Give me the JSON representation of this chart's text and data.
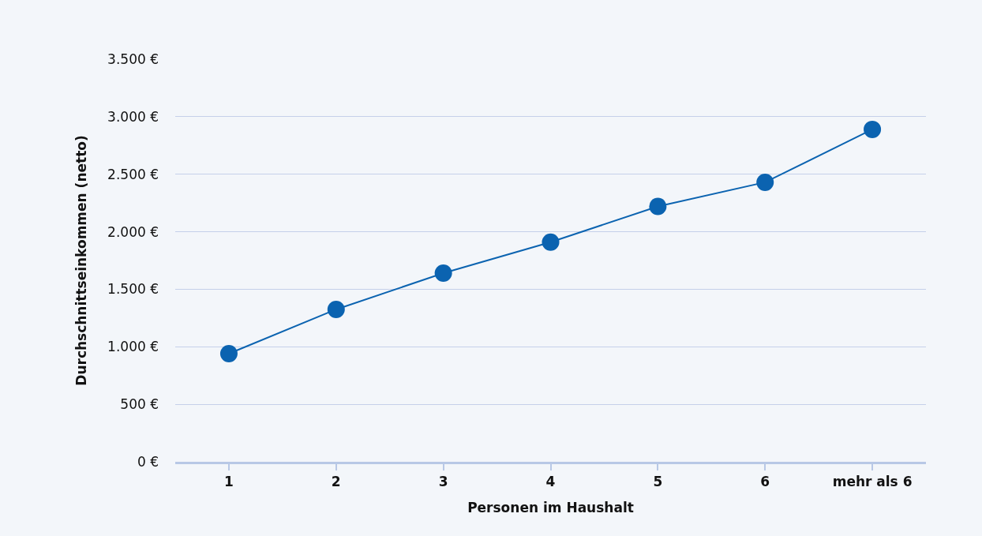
{
  "chart_data": {
    "type": "line",
    "xlabel": "Personen im Haushalt",
    "ylabel": "Durchschnittseinkommen (netto)",
    "categories": [
      "1",
      "2",
      "3",
      "4",
      "5",
      "6",
      "mehr als 6"
    ],
    "series": [
      {
        "color": "#0b63b0",
        "values": [
          940,
          1325,
          1640,
          1910,
          2220,
          2430,
          2890
        ]
      }
    ],
    "ylim": [
      0,
      3500
    ],
    "yticks": [
      {
        "value": 0,
        "label": "0 €"
      },
      {
        "value": 500,
        "label": "500 €"
      },
      {
        "value": 1000,
        "label": "1.000 €"
      },
      {
        "value": 1500,
        "label": "1.500 €"
      },
      {
        "value": 2000,
        "label": "2.000 €"
      },
      {
        "value": 2500,
        "label": "2.500 €"
      },
      {
        "value": 3000,
        "label": "3.000 €"
      },
      {
        "value": 3500,
        "label": "3.500 €"
      }
    ],
    "grid": "y",
    "marker": "circle",
    "line_style": "solid"
  }
}
